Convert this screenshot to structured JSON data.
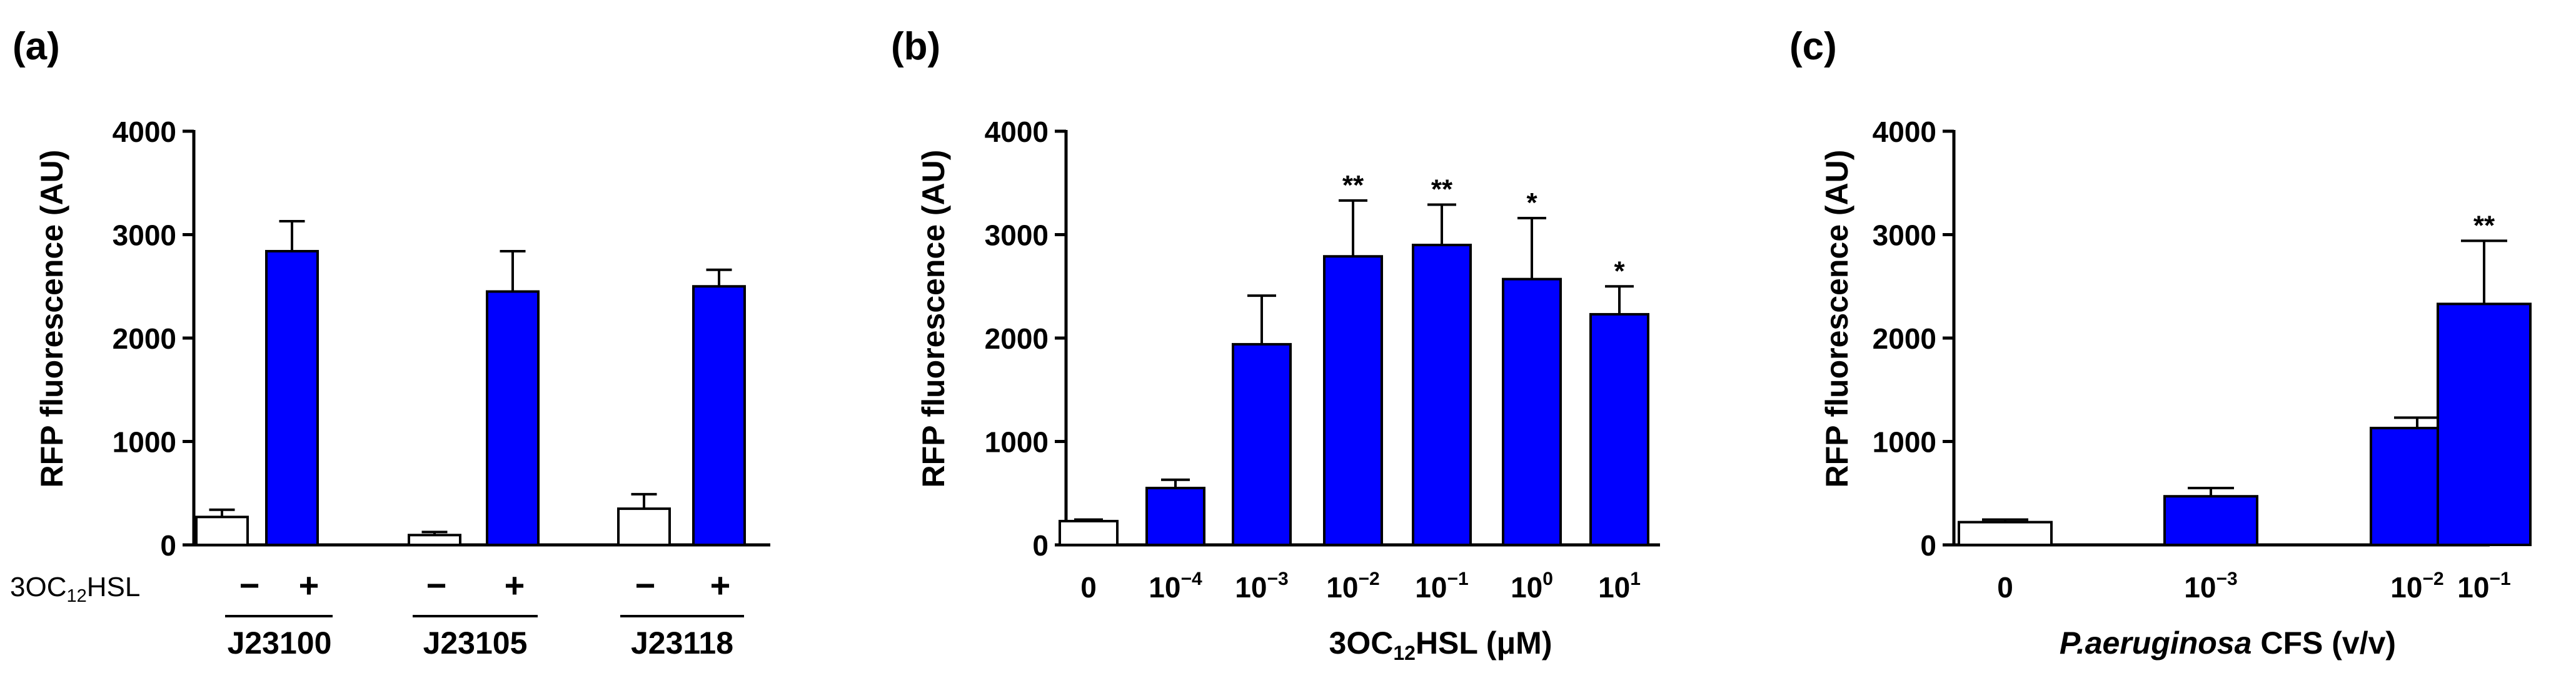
{
  "panels": [
    {
      "panel_label": "(a)",
      "ylabel": "RFP fluorescence (AU)",
      "yticks": [
        "0",
        "1000",
        "2000",
        "3000",
        "4000"
      ],
      "row_label": "3OC12HSL",
      "row_label_main": "3OC",
      "row_label_sub": "12",
      "row_label_end": "HSL",
      "signs": [
        "−",
        "+",
        "−",
        "+",
        "−",
        "+"
      ],
      "groups": [
        "J23100",
        "J23105",
        "J23118"
      ]
    },
    {
      "panel_label": "(b)",
      "ylabel": "RFP fluorescence (AU)",
      "yticks": [
        "0",
        "1000",
        "2000",
        "3000",
        "4000"
      ],
      "xlabel": "3OC12HSL (μM)",
      "xlabel_main": "3OC",
      "xlabel_sub": "12",
      "xlabel_end": "HSL (μM)",
      "tick_labels": [
        {
          "text": "0",
          "base": "0",
          "exp": ""
        },
        {
          "text": "10^-4",
          "base": "10",
          "exp": "−4"
        },
        {
          "text": "10^-3",
          "base": "10",
          "exp": "−3"
        },
        {
          "text": "10^-2",
          "base": "10",
          "exp": "−2"
        },
        {
          "text": "10^-1",
          "base": "10",
          "exp": "−1"
        },
        {
          "text": "10^0",
          "base": "10",
          "exp": "0"
        },
        {
          "text": "10^1",
          "base": "10",
          "exp": "1"
        }
      ]
    },
    {
      "panel_label": "(c)",
      "ylabel": "RFP fluorescence (AU)",
      "yticks": [
        "0",
        "1000",
        "2000",
        "3000",
        "4000"
      ],
      "xlabel": "P.aeruginosa CFS (v/v)",
      "xlabel_italic": "P.aeruginosa",
      "xlabel_rest": " CFS (v/v)",
      "tick_labels": [
        {
          "text": "0",
          "base": "0",
          "exp": ""
        },
        {
          "text": "10^-3",
          "base": "10",
          "exp": "−3"
        },
        {
          "text": "10^-2",
          "base": "10",
          "exp": "−2"
        },
        {
          "text": "10^-1",
          "base": "10",
          "exp": "−1"
        }
      ]
    }
  ],
  "chart_data": [
    {
      "type": "bar",
      "title": "(a)",
      "ylabel": "RFP fluorescence (AU)",
      "ylim": [
        0,
        4000
      ],
      "categories": [
        "J23100 −",
        "J23100 +",
        "J23105 −",
        "J23105 +",
        "J23118 −",
        "J23118 +"
      ],
      "values": [
        270,
        2840,
        95,
        2450,
        350,
        2500
      ],
      "errors": [
        70,
        290,
        30,
        390,
        140,
        160
      ],
      "fills": [
        "#ffffff",
        "#0000ff",
        "#ffffff",
        "#0000ff",
        "#ffffff",
        "#0000ff"
      ],
      "significance": [
        "",
        "",
        "",
        "",
        "",
        ""
      ]
    },
    {
      "type": "bar",
      "title": "(b)",
      "ylabel": "RFP fluorescence (AU)",
      "xlabel": "3OC12HSL (μM)",
      "ylim": [
        0,
        4000
      ],
      "categories": [
        "0",
        "10^-4",
        "10^-3",
        "10^-2",
        "10^-1",
        "10^0",
        "10^1"
      ],
      "values": [
        230,
        550,
        1940,
        2790,
        2900,
        2570,
        2230
      ],
      "errors": [
        15,
        80,
        470,
        540,
        390,
        590,
        270
      ],
      "fills": [
        "#ffffff",
        "#0000ff",
        "#0000ff",
        "#0000ff",
        "#0000ff",
        "#0000ff",
        "#0000ff"
      ],
      "significance": [
        "",
        "",
        "",
        "**",
        "**",
        "*",
        "*"
      ]
    },
    {
      "type": "bar",
      "title": "(c)",
      "ylabel": "RFP fluorescence (AU)",
      "xlabel": "P.aeruginosa CFS (v/v)",
      "ylim": [
        0,
        4000
      ],
      "categories": [
        "0",
        "10^-3",
        "10^-2",
        "10^-1"
      ],
      "values": [
        220,
        470,
        1130,
        2330
      ],
      "errors": [
        25,
        80,
        100,
        610
      ],
      "fills": [
        "#ffffff",
        "#0000ff",
        "#0000ff",
        "#0000ff"
      ],
      "significance": [
        "",
        "",
        "",
        "**"
      ]
    }
  ]
}
